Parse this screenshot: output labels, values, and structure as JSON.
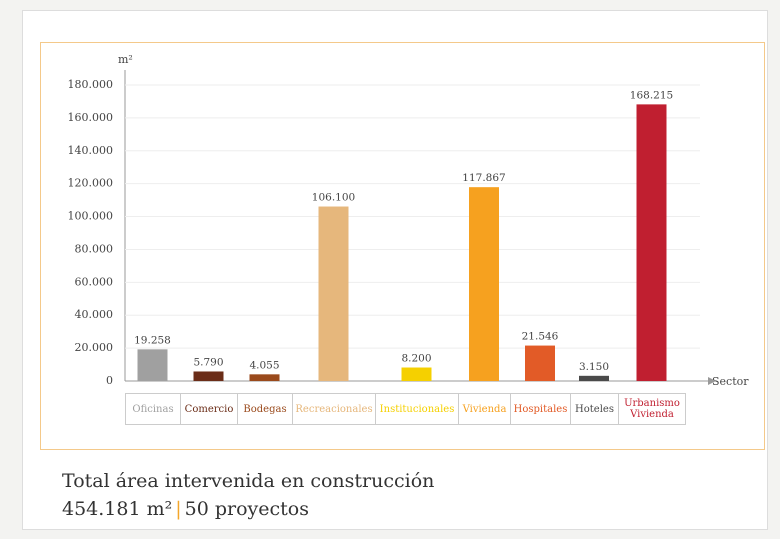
{
  "chart_data": {
    "type": "bar",
    "y_label": "m²",
    "x_label": "Sector",
    "categories": [
      "Oficinas",
      "Comercio",
      "Bodegas",
      "Recreacionales",
      "Institucionales",
      "Vivienda",
      "Hospitales",
      "Hoteles",
      "Urbanismo Vivienda"
    ],
    "values": [
      19258,
      5790,
      4055,
      106100,
      8200,
      117867,
      21546,
      3150,
      168215
    ],
    "value_labels": [
      "19.258",
      "5.790",
      "4.055",
      "106.100",
      "8.200",
      "117.867",
      "21.546",
      "3.150",
      "168.215"
    ],
    "colors": [
      "#a0a0a0",
      "#6b2d18",
      "#9a4a1c",
      "#e6b77c",
      "#f5d000",
      "#f6a11f",
      "#e25b27",
      "#4a4a4a",
      "#c01f30"
    ],
    "ylim": [
      0,
      180000
    ],
    "yticks": [
      0,
      {
        "value": 20000,
        "label": "20.000"
      },
      {
        "value": 40000,
        "label": "40.000"
      },
      {
        "value": 60000,
        "label": "60.000"
      },
      {
        "value": 80000,
        "label": "80.000"
      },
      {
        "value": 100000,
        "label": "100.000"
      },
      {
        "value": 120000,
        "label": "120.000"
      },
      {
        "value": 140000,
        "label": "140.000"
      },
      {
        "value": 160000,
        "label": "160.000"
      },
      {
        "value": 180000,
        "label": "180.000"
      }
    ],
    "grid": true
  },
  "footer": {
    "title": "Total área intervenida en construcción",
    "area": "454.181 m²",
    "projects": "50 proyectos"
  }
}
